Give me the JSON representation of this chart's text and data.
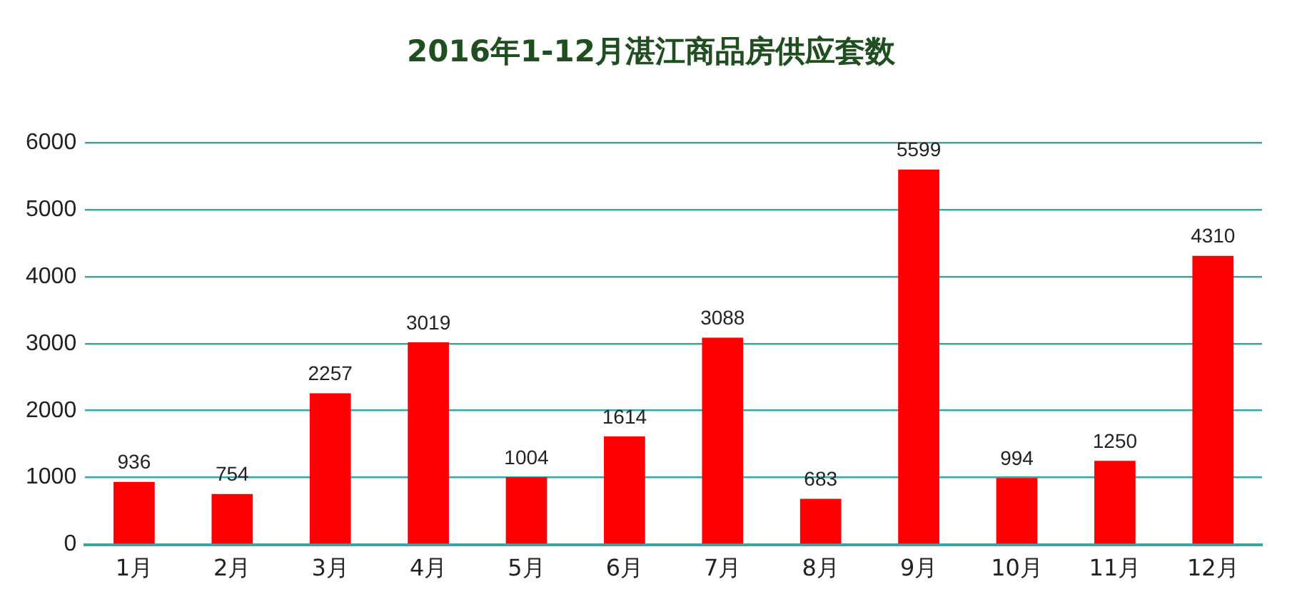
{
  "chart_data": {
    "type": "bar",
    "title": "2016年1-12月湛江商品房供应套数",
    "categories": [
      "1月",
      "2月",
      "3月",
      "4月",
      "5月",
      "6月",
      "7月",
      "8月",
      "9月",
      "10月",
      "11月",
      "12月"
    ],
    "values": [
      936,
      754,
      2257,
      3019,
      1004,
      1614,
      3088,
      683,
      5599,
      994,
      1250,
      4310
    ],
    "color": "#ff0000",
    "ylim": [
      0,
      6000
    ],
    "yticks": [
      0,
      1000,
      2000,
      3000,
      4000,
      5000,
      6000
    ],
    "grid": "y",
    "data_labels": true
  }
}
